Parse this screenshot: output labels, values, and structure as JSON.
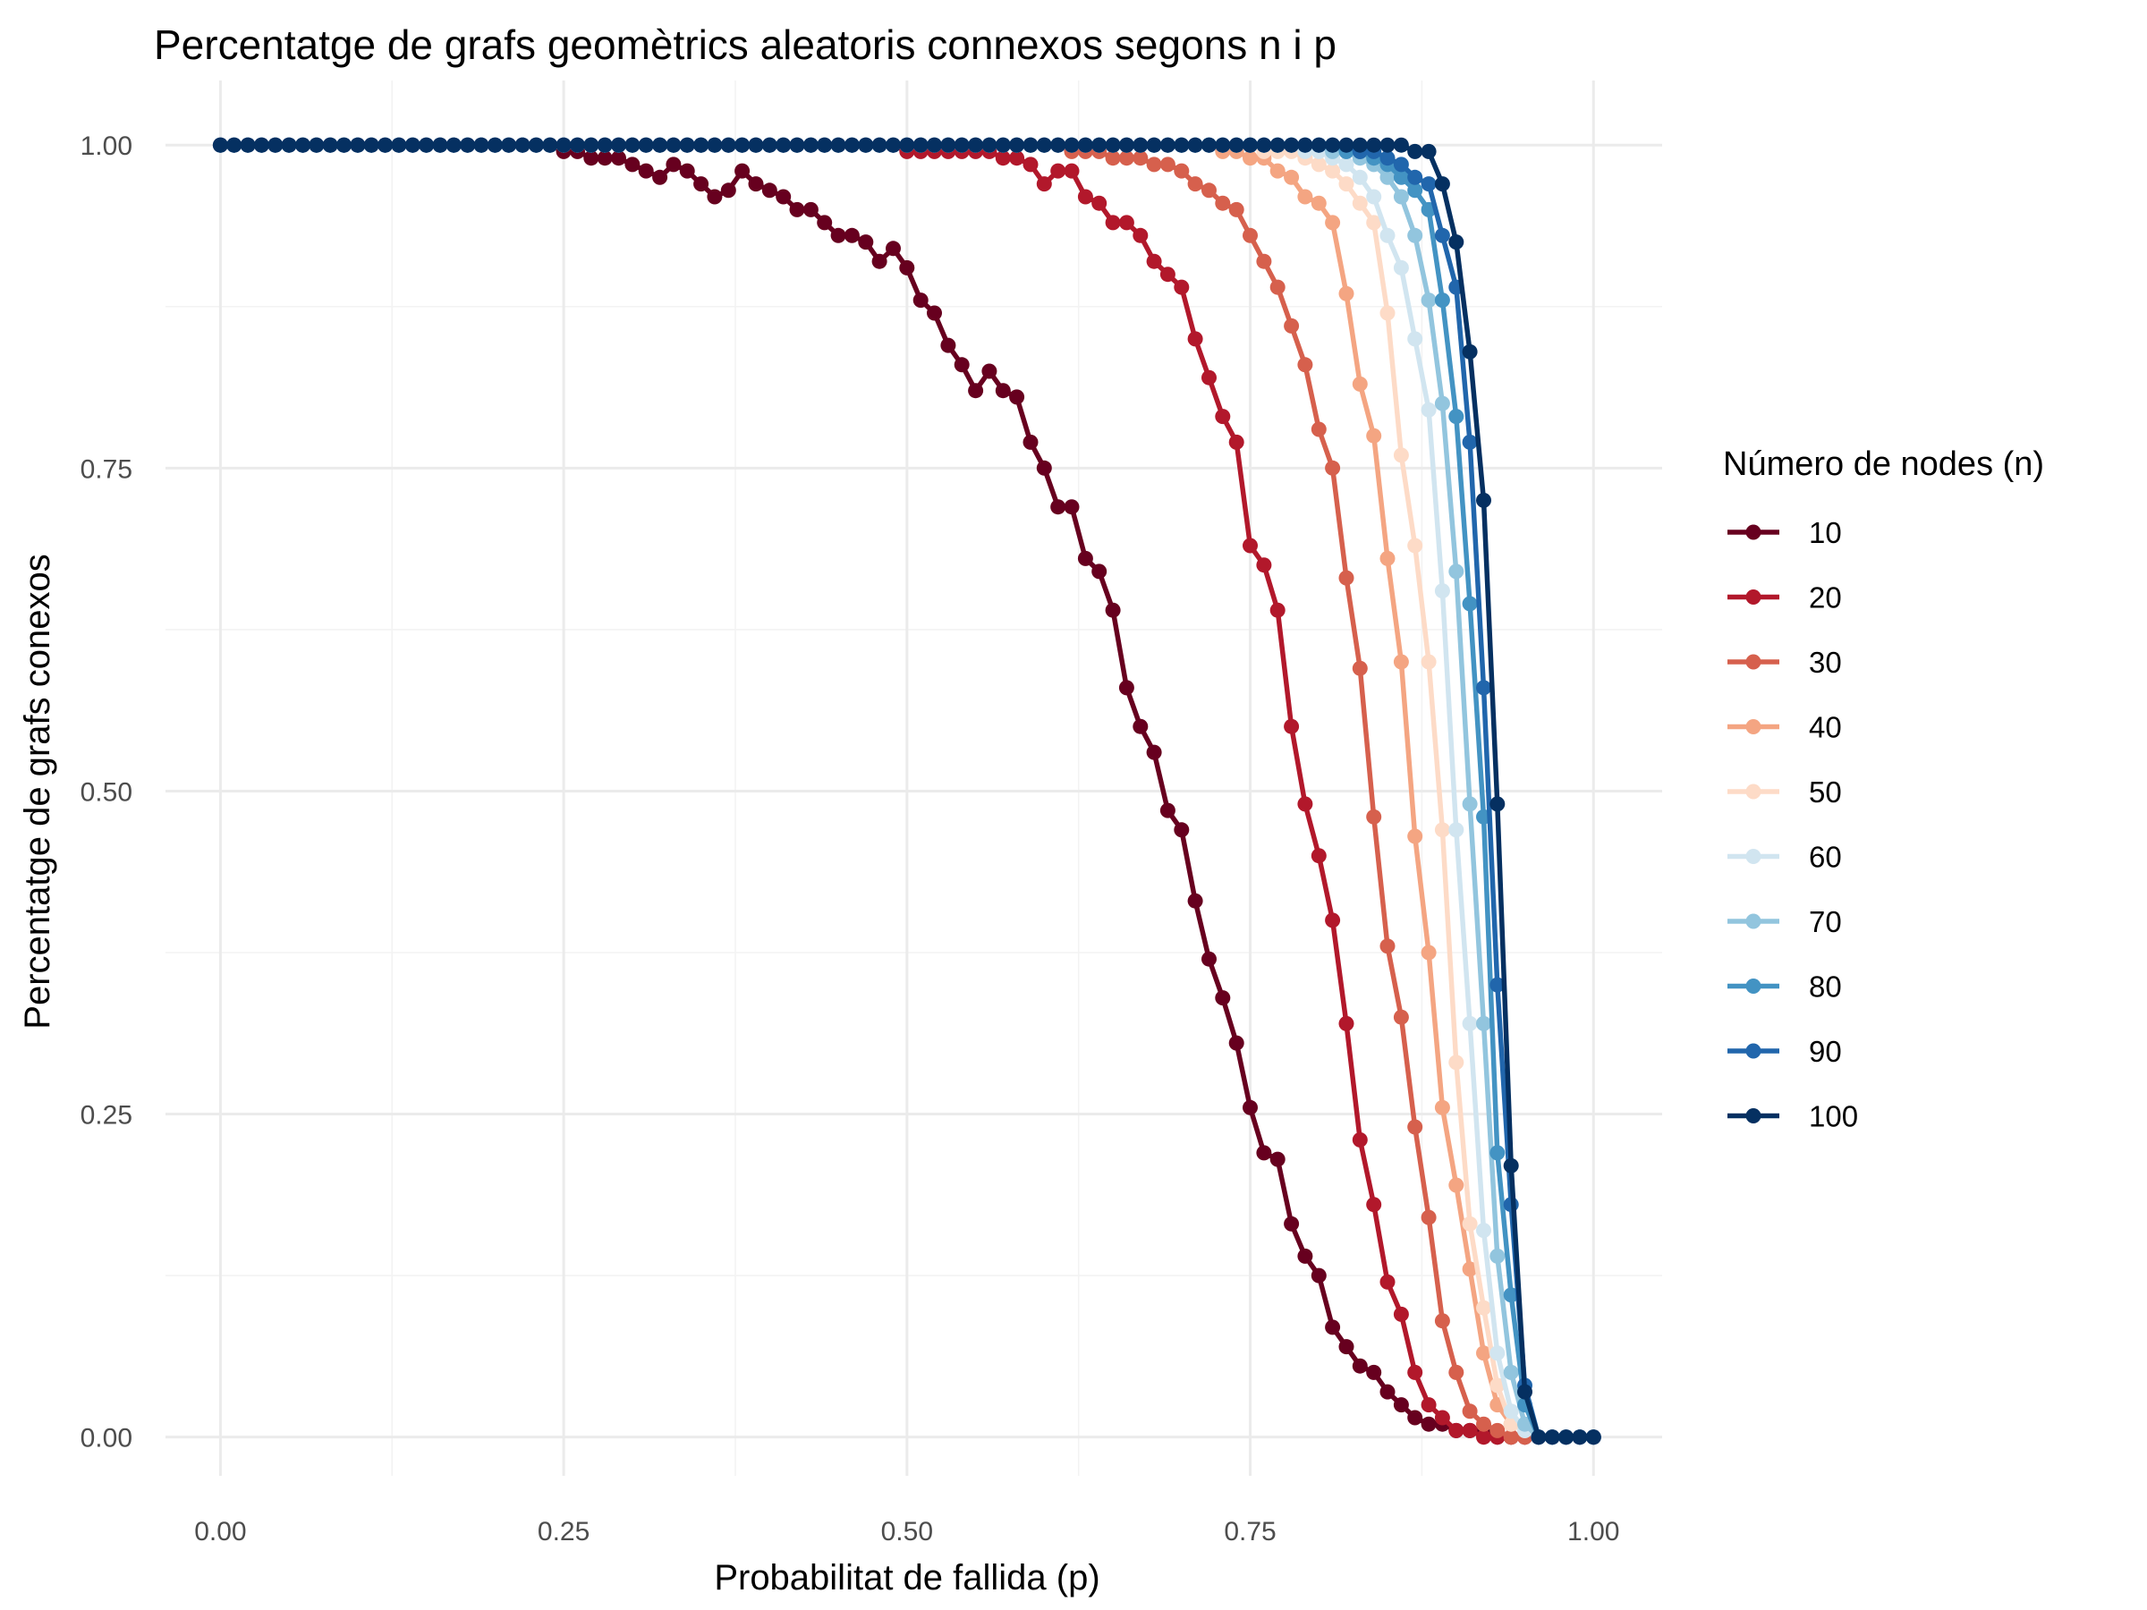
{
  "chart_data": {
    "type": "line",
    "title": "Percentatge de grafs geomètrics aleatoris connexos segons n i p",
    "xlabel": "Probabilitat de fallida (p)",
    "ylabel": "Percentatge de grafs conexos",
    "xlim": [
      -0.04,
      1.05
    ],
    "ylim": [
      -0.03,
      1.05
    ],
    "x_ticks": [
      0,
      0.25,
      0.5,
      0.75,
      1
    ],
    "x_tick_labels": [
      "0.00",
      "0.25",
      "0.50",
      "0.75",
      "1.00"
    ],
    "y_ticks": [
      0,
      0.25,
      0.5,
      0.75,
      1
    ],
    "y_tick_labels": [
      "0.00",
      "0.25",
      "0.50",
      "0.75",
      "1.00"
    ],
    "grid": true,
    "x_step": 0.01,
    "legend": {
      "title": "Número de nodes (n)",
      "position": "right"
    },
    "series": [
      {
        "name": "10",
        "color": "#67001F",
        "values": [
          1,
          1,
          1,
          1,
          1,
          1,
          1,
          1,
          1,
          1,
          1,
          1,
          1,
          1,
          1,
          1,
          1,
          1,
          1,
          1,
          1,
          1,
          1,
          1,
          1,
          0.995,
          0.995,
          0.99,
          0.99,
          0.99,
          0.985,
          0.98,
          0.975,
          0.985,
          0.98,
          0.97,
          0.96,
          0.965,
          0.98,
          0.97,
          0.965,
          0.96,
          0.95,
          0.95,
          0.94,
          0.93,
          0.93,
          0.925,
          0.91,
          0.92,
          0.905,
          0.88,
          0.87,
          0.845,
          0.83,
          0.81,
          0.825,
          0.81,
          0.805,
          0.77,
          0.75,
          0.72,
          0.72,
          0.68,
          0.67,
          0.64,
          0.58,
          0.55,
          0.53,
          0.485,
          0.47,
          0.415,
          0.37,
          0.34,
          0.305,
          0.255,
          0.22,
          0.215,
          0.165,
          0.14,
          0.125,
          0.085,
          0.07,
          0.055,
          0.05,
          0.035,
          0.025,
          0.015,
          0.01,
          0.01,
          0.005,
          0.005,
          0.005,
          0,
          0,
          0,
          0,
          0,
          0,
          0,
          0
        ]
      },
      {
        "name": "20",
        "color": "#B2182B",
        "values": [
          1,
          1,
          1,
          1,
          1,
          1,
          1,
          1,
          1,
          1,
          1,
          1,
          1,
          1,
          1,
          1,
          1,
          1,
          1,
          1,
          1,
          1,
          1,
          1,
          1,
          1,
          1,
          1,
          1,
          1,
          1,
          1,
          1,
          1,
          1,
          1,
          1,
          1,
          1,
          1,
          1,
          1,
          1,
          1,
          1,
          1,
          1,
          1,
          1,
          1,
          0.995,
          0.995,
          0.995,
          0.995,
          0.995,
          0.995,
          0.995,
          0.99,
          0.99,
          0.985,
          0.97,
          0.98,
          0.98,
          0.96,
          0.955,
          0.94,
          0.94,
          0.93,
          0.91,
          0.9,
          0.89,
          0.85,
          0.82,
          0.79,
          0.77,
          0.69,
          0.675,
          0.64,
          0.55,
          0.49,
          0.45,
          0.4,
          0.32,
          0.23,
          0.18,
          0.12,
          0.095,
          0.05,
          0.025,
          0.015,
          0.005,
          0.005,
          0,
          0,
          0,
          0,
          0,
          0,
          0,
          0,
          0
        ]
      },
      {
        "name": "30",
        "color": "#D6604D",
        "values": [
          1,
          1,
          1,
          1,
          1,
          1,
          1,
          1,
          1,
          1,
          1,
          1,
          1,
          1,
          1,
          1,
          1,
          1,
          1,
          1,
          1,
          1,
          1,
          1,
          1,
          1,
          1,
          1,
          1,
          1,
          1,
          1,
          1,
          1,
          1,
          1,
          1,
          1,
          1,
          1,
          1,
          1,
          1,
          1,
          1,
          1,
          1,
          1,
          1,
          1,
          1,
          1,
          1,
          1,
          1,
          1,
          1,
          1,
          1,
          1,
          1,
          1,
          0.995,
          0.995,
          0.995,
          0.99,
          0.99,
          0.99,
          0.985,
          0.985,
          0.98,
          0.97,
          0.965,
          0.955,
          0.95,
          0.93,
          0.91,
          0.89,
          0.86,
          0.83,
          0.78,
          0.75,
          0.665,
          0.595,
          0.48,
          0.38,
          0.325,
          0.24,
          0.17,
          0.09,
          0.05,
          0.02,
          0.01,
          0.005,
          0,
          0,
          0,
          0,
          0,
          0,
          0
        ]
      },
      {
        "name": "40",
        "color": "#F4A582",
        "values": [
          1,
          1,
          1,
          1,
          1,
          1,
          1,
          1,
          1,
          1,
          1,
          1,
          1,
          1,
          1,
          1,
          1,
          1,
          1,
          1,
          1,
          1,
          1,
          1,
          1,
          1,
          1,
          1,
          1,
          1,
          1,
          1,
          1,
          1,
          1,
          1,
          1,
          1,
          1,
          1,
          1,
          1,
          1,
          1,
          1,
          1,
          1,
          1,
          1,
          1,
          1,
          1,
          1,
          1,
          1,
          1,
          1,
          1,
          1,
          1,
          1,
          1,
          1,
          1,
          1,
          1,
          1,
          1,
          1,
          1,
          1,
          1,
          1,
          0.995,
          0.995,
          0.99,
          0.99,
          0.98,
          0.975,
          0.96,
          0.955,
          0.94,
          0.885,
          0.815,
          0.775,
          0.68,
          0.6,
          0.465,
          0.375,
          0.255,
          0.195,
          0.13,
          0.065,
          0.025,
          0.01,
          0.005,
          0,
          0,
          0,
          0,
          0
        ]
      },
      {
        "name": "50",
        "color": "#FDDBC7",
        "values": [
          1,
          1,
          1,
          1,
          1,
          1,
          1,
          1,
          1,
          1,
          1,
          1,
          1,
          1,
          1,
          1,
          1,
          1,
          1,
          1,
          1,
          1,
          1,
          1,
          1,
          1,
          1,
          1,
          1,
          1,
          1,
          1,
          1,
          1,
          1,
          1,
          1,
          1,
          1,
          1,
          1,
          1,
          1,
          1,
          1,
          1,
          1,
          1,
          1,
          1,
          1,
          1,
          1,
          1,
          1,
          1,
          1,
          1,
          1,
          1,
          1,
          1,
          1,
          1,
          1,
          1,
          1,
          1,
          1,
          1,
          1,
          1,
          1,
          1,
          1,
          1,
          0.995,
          0.995,
          0.995,
          0.99,
          0.985,
          0.98,
          0.97,
          0.955,
          0.94,
          0.87,
          0.76,
          0.69,
          0.6,
          0.47,
          0.29,
          0.165,
          0.1,
          0.04,
          0.01,
          0.005,
          0,
          0,
          0,
          0,
          0
        ]
      },
      {
        "name": "60",
        "color": "#D1E5F0",
        "values": [
          1,
          1,
          1,
          1,
          1,
          1,
          1,
          1,
          1,
          1,
          1,
          1,
          1,
          1,
          1,
          1,
          1,
          1,
          1,
          1,
          1,
          1,
          1,
          1,
          1,
          1,
          1,
          1,
          1,
          1,
          1,
          1,
          1,
          1,
          1,
          1,
          1,
          1,
          1,
          1,
          1,
          1,
          1,
          1,
          1,
          1,
          1,
          1,
          1,
          1,
          1,
          1,
          1,
          1,
          1,
          1,
          1,
          1,
          1,
          1,
          1,
          1,
          1,
          1,
          1,
          1,
          1,
          1,
          1,
          1,
          1,
          1,
          1,
          1,
          1,
          1,
          1,
          1,
          1,
          0.995,
          0.995,
          0.99,
          0.985,
          0.975,
          0.96,
          0.93,
          0.905,
          0.85,
          0.795,
          0.655,
          0.47,
          0.32,
          0.16,
          0.065,
          0.02,
          0.005,
          0,
          0,
          0,
          0,
          0
        ]
      },
      {
        "name": "70",
        "color": "#92C5DE",
        "values": [
          1,
          1,
          1,
          1,
          1,
          1,
          1,
          1,
          1,
          1,
          1,
          1,
          1,
          1,
          1,
          1,
          1,
          1,
          1,
          1,
          1,
          1,
          1,
          1,
          1,
          1,
          1,
          1,
          1,
          1,
          1,
          1,
          1,
          1,
          1,
          1,
          1,
          1,
          1,
          1,
          1,
          1,
          1,
          1,
          1,
          1,
          1,
          1,
          1,
          1,
          1,
          1,
          1,
          1,
          1,
          1,
          1,
          1,
          1,
          1,
          1,
          1,
          1,
          1,
          1,
          1,
          1,
          1,
          1,
          1,
          1,
          1,
          1,
          1,
          1,
          1,
          1,
          1,
          1,
          1,
          1,
          0.995,
          0.995,
          0.99,
          0.985,
          0.975,
          0.96,
          0.93,
          0.88,
          0.8,
          0.67,
          0.49,
          0.32,
          0.14,
          0.05,
          0.01,
          0,
          0,
          0,
          0,
          0
        ]
      },
      {
        "name": "80",
        "color": "#4393C3",
        "values": [
          1,
          1,
          1,
          1,
          1,
          1,
          1,
          1,
          1,
          1,
          1,
          1,
          1,
          1,
          1,
          1,
          1,
          1,
          1,
          1,
          1,
          1,
          1,
          1,
          1,
          1,
          1,
          1,
          1,
          1,
          1,
          1,
          1,
          1,
          1,
          1,
          1,
          1,
          1,
          1,
          1,
          1,
          1,
          1,
          1,
          1,
          1,
          1,
          1,
          1,
          1,
          1,
          1,
          1,
          1,
          1,
          1,
          1,
          1,
          1,
          1,
          1,
          1,
          1,
          1,
          1,
          1,
          1,
          1,
          1,
          1,
          1,
          1,
          1,
          1,
          1,
          1,
          1,
          1,
          1,
          1,
          1,
          0.995,
          0.995,
          0.99,
          0.985,
          0.975,
          0.965,
          0.95,
          0.88,
          0.79,
          0.645,
          0.48,
          0.22,
          0.11,
          0.025,
          0,
          0,
          0,
          0,
          0
        ]
      },
      {
        "name": "90",
        "color": "#2166AC",
        "values": [
          1,
          1,
          1,
          1,
          1,
          1,
          1,
          1,
          1,
          1,
          1,
          1,
          1,
          1,
          1,
          1,
          1,
          1,
          1,
          1,
          1,
          1,
          1,
          1,
          1,
          1,
          1,
          1,
          1,
          1,
          1,
          1,
          1,
          1,
          1,
          1,
          1,
          1,
          1,
          1,
          1,
          1,
          1,
          1,
          1,
          1,
          1,
          1,
          1,
          1,
          1,
          1,
          1,
          1,
          1,
          1,
          1,
          1,
          1,
          1,
          1,
          1,
          1,
          1,
          1,
          1,
          1,
          1,
          1,
          1,
          1,
          1,
          1,
          1,
          1,
          1,
          1,
          1,
          1,
          1,
          1,
          1,
          1,
          0.995,
          0.995,
          0.99,
          0.985,
          0.975,
          0.97,
          0.93,
          0.89,
          0.77,
          0.58,
          0.35,
          0.18,
          0.04,
          0,
          0,
          0,
          0,
          0
        ]
      },
      {
        "name": "100",
        "color": "#053061",
        "values": [
          1,
          1,
          1,
          1,
          1,
          1,
          1,
          1,
          1,
          1,
          1,
          1,
          1,
          1,
          1,
          1,
          1,
          1,
          1,
          1,
          1,
          1,
          1,
          1,
          1,
          1,
          1,
          1,
          1,
          1,
          1,
          1,
          1,
          1,
          1,
          1,
          1,
          1,
          1,
          1,
          1,
          1,
          1,
          1,
          1,
          1,
          1,
          1,
          1,
          1,
          1,
          1,
          1,
          1,
          1,
          1,
          1,
          1,
          1,
          1,
          1,
          1,
          1,
          1,
          1,
          1,
          1,
          1,
          1,
          1,
          1,
          1,
          1,
          1,
          1,
          1,
          1,
          1,
          1,
          1,
          1,
          1,
          1,
          1,
          1,
          1,
          1,
          0.995,
          0.995,
          0.97,
          0.925,
          0.84,
          0.725,
          0.49,
          0.21,
          0.035,
          0,
          0,
          0,
          0,
          0
        ]
      }
    ]
  }
}
